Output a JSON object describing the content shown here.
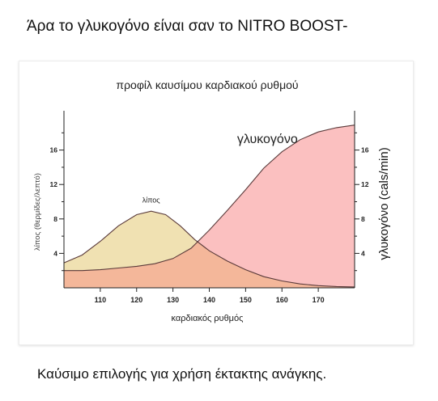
{
  "page": {
    "heading": "Άρα το γλυκογόνο είναι σαν το NITRO BOOST-",
    "footer": "Καύσιμο επιλογής για χρήση έκτακτης ανάγκης."
  },
  "chart_data": {
    "type": "area",
    "title": "προφίλ καυσίμου καρδιακού ρυθμού",
    "xlabel": "καρδιακός ρυθμός",
    "ylabel_left": "λίπος (θερμίδες/λεπτό)",
    "ylabel_right": "γλυκογόνο (cals/min)",
    "xlim": [
      100,
      180
    ],
    "ylim": [
      0,
      20
    ],
    "x_ticks": [
      110,
      120,
      130,
      140,
      150,
      160,
      170
    ],
    "y_ticks": [
      4,
      8,
      12,
      16
    ],
    "series": [
      {
        "name": "λίπος",
        "color": "#f0e1b2",
        "x": [
          100,
          105,
          110,
          115,
          120,
          124,
          128,
          132,
          136,
          140,
          145,
          150,
          155,
          160,
          165,
          170,
          175,
          180
        ],
        "values": [
          2.9,
          3.8,
          5.4,
          7.2,
          8.5,
          8.9,
          8.5,
          7.2,
          5.6,
          4.3,
          3.1,
          2.1,
          1.3,
          0.8,
          0.45,
          0.25,
          0.15,
          0.1
        ]
      },
      {
        "name": "γλυκογόνο",
        "color": "#fbc0c0",
        "x": [
          100,
          105,
          110,
          115,
          120,
          125,
          130,
          135,
          140,
          145,
          150,
          155,
          160,
          165,
          170,
          175,
          180
        ],
        "values": [
          2.0,
          2.0,
          2.1,
          2.3,
          2.5,
          2.8,
          3.4,
          4.6,
          6.7,
          9.0,
          11.4,
          13.9,
          15.8,
          17.2,
          18.1,
          18.6,
          18.9
        ]
      }
    ],
    "overlap_color": "#f4b79a",
    "line_color": "#5a3a3a"
  }
}
